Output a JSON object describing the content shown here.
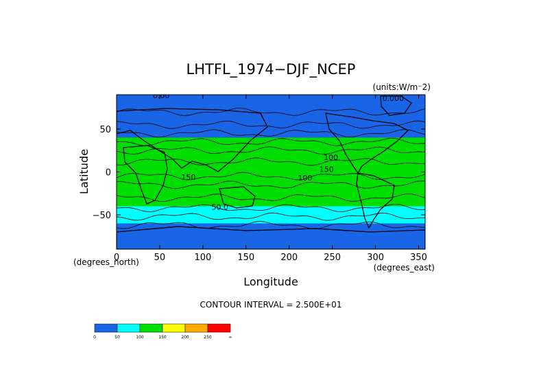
{
  "chart_data": {
    "type": "heatmap",
    "title": "LHTFL_1974−DJF_NCEP",
    "units": "(units:W/m⁻2)",
    "xlabel": "Longitude",
    "ylabel": "Latitude",
    "x_units": "(degrees_east)",
    "y_units": "(degrees_north)",
    "xlim": [
      0,
      357.5
    ],
    "ylim": [
      -90,
      90
    ],
    "x_ticks": [
      0,
      50,
      100,
      150,
      200,
      250,
      300,
      350
    ],
    "y_ticks": [
      -50,
      0,
      50
    ],
    "contour_interval": "CONTOUR INTERVAL = 2.500E+01",
    "contour_labels": [
      "0.00",
      "150",
      "100",
      "150",
      "100",
      "50.0",
      "0.000"
    ],
    "grid": false,
    "colorbar": {
      "ticks": [
        "0",
        "50",
        "100",
        "150",
        "200",
        "250",
        "∞"
      ],
      "colors": [
        "#1a64e6",
        "#00ffff",
        "#00dd00",
        "#ffff00",
        "#ffaa00",
        "#ff0000"
      ]
    },
    "levels": [
      0,
      25,
      50,
      75,
      100,
      125,
      150,
      175,
      200,
      225,
      250,
      275,
      300
    ],
    "sample_bands": [
      {
        "lat_range": [
          60,
          90
        ],
        "approx_value": 10
      },
      {
        "lat_range": [
          40,
          60
        ],
        "approx_value": 40
      },
      {
        "lat_range": [
          20,
          40
        ],
        "approx_value": 110
      },
      {
        "lat_range": [
          -20,
          20
        ],
        "approx_value": 140
      },
      {
        "lat_range": [
          -40,
          -20
        ],
        "approx_value": 110
      },
      {
        "lat_range": [
          -60,
          -40
        ],
        "approx_value": 50
      },
      {
        "lat_range": [
          -90,
          -60
        ],
        "approx_value": 10
      }
    ]
  }
}
